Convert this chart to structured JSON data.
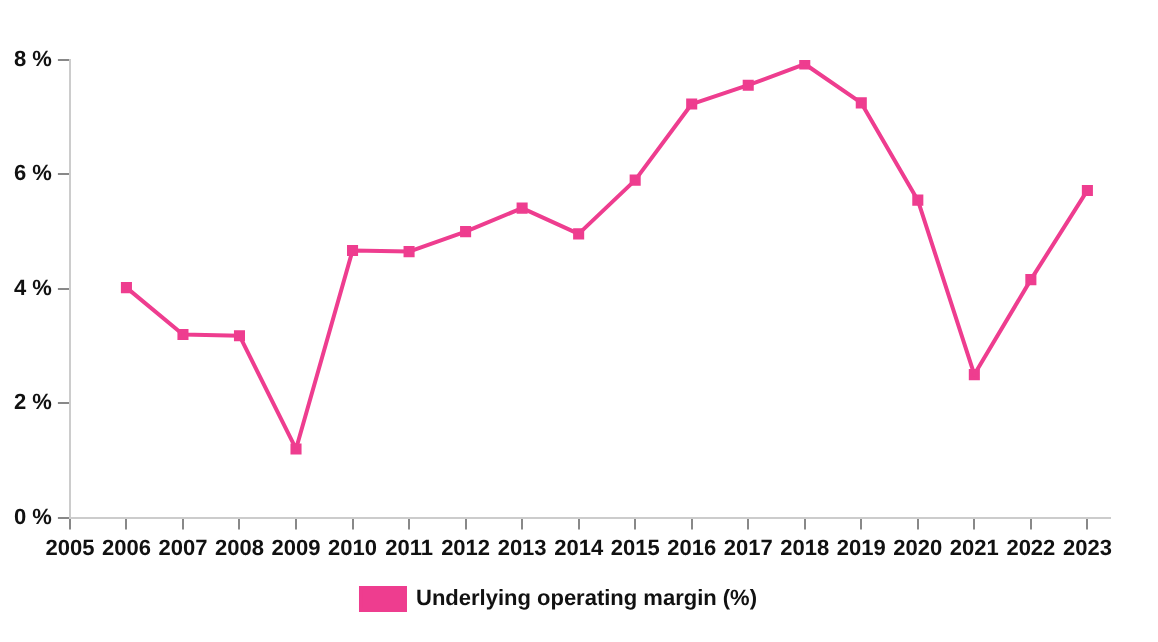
{
  "chart_data": {
    "type": "line",
    "x": [
      2006,
      2007,
      2008,
      2009,
      2010,
      2011,
      2012,
      2013,
      2014,
      2015,
      2016,
      2017,
      2018,
      2019,
      2020,
      2021,
      2022,
      2023
    ],
    "series": [
      {
        "name": "Underlying operating margin (%)",
        "color": "#ee3d8f",
        "values": [
          4.02,
          3.2,
          3.18,
          1.2,
          4.67,
          4.65,
          5.0,
          5.41,
          4.96,
          5.9,
          7.23,
          7.56,
          7.93,
          7.25,
          5.55,
          2.5,
          4.16,
          5.72
        ]
      }
    ],
    "xlim": [
      2005,
      2023.4
    ],
    "xticks": [
      2005,
      2006,
      2007,
      2008,
      2009,
      2010,
      2011,
      2012,
      2013,
      2014,
      2015,
      2016,
      2017,
      2018,
      2019,
      2020,
      2021,
      2022,
      2023
    ],
    "ylim": [
      0,
      8
    ],
    "yticks": [
      {
        "value": 0,
        "label": "0 %"
      },
      {
        "value": 2,
        "label": "2 %"
      },
      {
        "value": 4,
        "label": "4 %"
      },
      {
        "value": 6,
        "label": "6 %"
      },
      {
        "value": 8,
        "label": "8 %"
      }
    ],
    "grid": false,
    "legend": "bottom",
    "marker": "square",
    "line_style": "solid"
  }
}
